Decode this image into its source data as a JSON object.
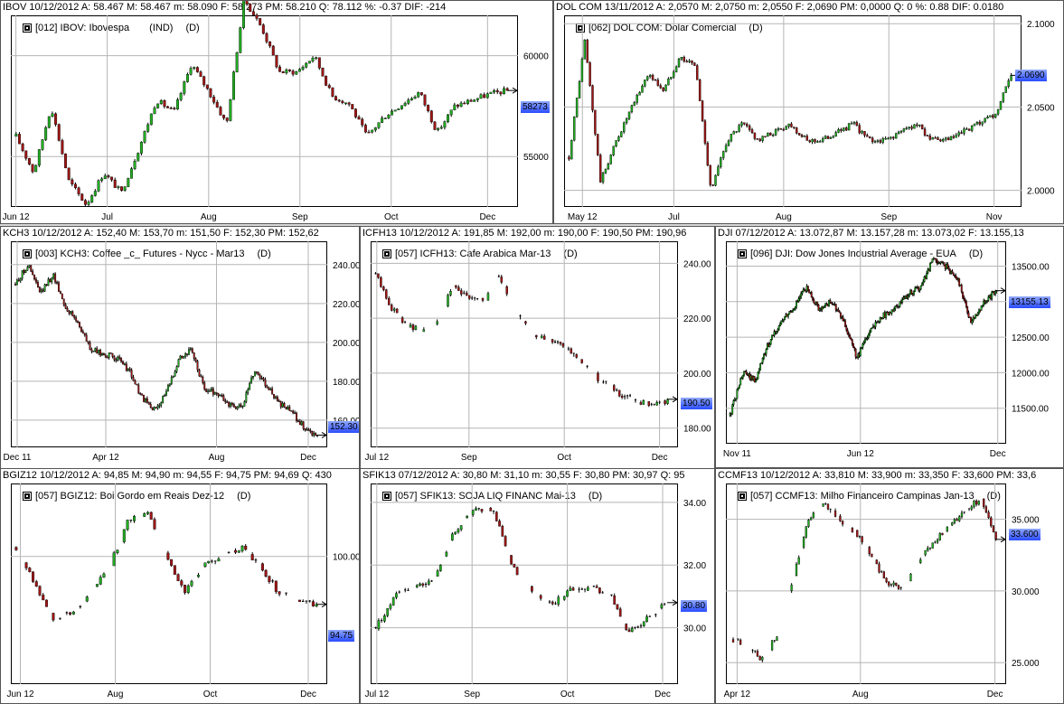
{
  "colors": {
    "up": "#22b022",
    "down": "#a01515",
    "grid": "#b5b5b5",
    "price_box": "#3355ff",
    "frame": "#000000"
  },
  "panels": [
    {
      "id": "ibov",
      "header": "IBOV   10/12/2012  A: 58.467   M: 58.467   m: 58.090   F: 58.273   PM: 58.210   Q: 78.112   %: -0.37  DIF: -214",
      "legend": "[012] IBOV: Ibovespa",
      "legend_tag": "(IND)",
      "timeframe": "(D)",
      "price_label": "58273",
      "chart_data": {
        "type": "candlestick",
        "x_ticks": [
          "Jun 12",
          "Jul",
          "Aug",
          "Sep",
          "Oct",
          "Dec"
        ],
        "y_ticks": [
          "60000",
          "55000"
        ],
        "ylim": [
          52500,
          62000
        ],
        "path": [
          56000,
          54200,
          57500,
          53800,
          52600,
          54200,
          53200,
          55400,
          57800,
          57200,
          59600,
          58200,
          56600,
          62800,
          61400,
          59200,
          59200,
          60000,
          58000,
          57600,
          56000,
          57000,
          57600,
          58200,
          56200,
          57500,
          57800,
          58100,
          58273
        ],
        "last_close": 58273
      }
    },
    {
      "id": "dolcom",
      "header": "DOL COM   13/11/2012  A: 2,0570   M: 2,0750   m: 2,0550   F: 2,0690   PM: 0,0000   Q: 0   %: 0.88  DIF: 0.0180",
      "legend": "[062] DOL COM: Dolar Comercial",
      "legend_tag": "",
      "timeframe": "(D)",
      "price_label": "2.0690",
      "chart_data": {
        "type": "candlestick",
        "x_ticks": [
          "May 12",
          "Jul",
          "Aug",
          "Sep",
          "Nov"
        ],
        "y_ticks": [
          "2.1000",
          "2.0500",
          "2.0000"
        ],
        "ylim": [
          1.99,
          2.105
        ],
        "path": [
          2.02,
          2.09,
          2.005,
          2.03,
          2.05,
          2.07,
          2.06,
          2.08,
          2.075,
          2.0,
          2.03,
          2.04,
          2.03,
          2.035,
          2.04,
          2.03,
          2.03,
          2.035,
          2.04,
          2.03,
          2.03,
          2.035,
          2.04,
          2.03,
          2.03,
          2.035,
          2.04,
          2.045,
          2.069
        ],
        "last_close": 2.069
      }
    },
    {
      "id": "kch3",
      "header": "KCH3   10/12/2012  A: 152,40   M: 153,70   m: 151,50   F: 152,30   PM: 152,62",
      "legend": "[003] KCH3: Coffee _c_ Futures - Nycc - Mar13",
      "legend_tag": "",
      "timeframe": "(D)",
      "price_label": "152.30",
      "chart_data": {
        "type": "candlestick",
        "x_ticks": [
          "Dec 11",
          "Apr 12",
          "Aug",
          "Dec"
        ],
        "y_ticks": [
          "240.00",
          "220.00",
          "200.00",
          "180.00",
          "160.00"
        ],
        "ylim": [
          146,
          252
        ],
        "path": [
          230,
          240,
          225,
          235,
          218,
          210,
          196,
          194,
          192,
          186,
          172,
          165,
          174,
          192,
          196,
          176,
          174,
          168,
          166,
          186,
          178,
          168,
          164,
          156,
          152
        ],
        "last_close": 152.3
      }
    },
    {
      "id": "icfh13",
      "header": "ICFH13   10/12/2012  A: 191,85   M: 192,00   m: 190,00   F: 190,50   PM: 190,96",
      "legend": "[057] ICFH13: Cafe Arabica Mar-13",
      "legend_tag": "",
      "timeframe": "(D)",
      "price_label": "190.50",
      "chart_data": {
        "type": "ohlc-sparse",
        "x_ticks": [
          "Jul 12",
          "Sep",
          "Oct",
          "Dec"
        ],
        "y_ticks": [
          "240.00",
          "220.00",
          "200.00",
          "180.00"
        ],
        "ylim": [
          173,
          248
        ],
        "path": [
          236,
          224,
          218,
          215,
          218,
          232,
          228,
          226,
          236,
          222,
          216,
          212,
          210,
          206,
          200,
          196,
          192,
          190,
          188,
          190
        ],
        "last_close": 190.5
      }
    },
    {
      "id": "dji",
      "header": "DJI   07/12/2012  A: 13.072,87   M: 13.157,28   m: 13.073,02   F: 13.155,13",
      "legend": "[096] DJI: Dow Jones Industrial Average - EUA",
      "legend_tag": "",
      "timeframe": "(D)",
      "price_label": "13155.13",
      "chart_data": {
        "type": "candlestick",
        "x_ticks": [
          "Nov 11",
          "Jun 12",
          "Dec"
        ],
        "y_ticks": [
          "13500.00",
          "13000.00",
          "12500.00",
          "12000.00",
          "11500.00"
        ],
        "ylim": [
          11000,
          13850
        ],
        "path": [
          11400,
          12000,
          11900,
          12400,
          12700,
          12900,
          13200,
          12900,
          13000,
          12700,
          12200,
          12600,
          12800,
          12900,
          13100,
          13200,
          13600,
          13500,
          13300,
          12700,
          13000,
          13155
        ],
        "last_close": 13155.13
      }
    },
    {
      "id": "bgiz12",
      "header": "BGIZ12   10/12/2012  A: 94,85   M: 94,90   m: 94,55   F: 94,75   PM: 94,69   Q: 430",
      "legend": "[057] BGIZ12: Boi Gordo em Reais Dez-12",
      "legend_tag": "",
      "timeframe": "(D)",
      "price_label": "94.75",
      "chart_data": {
        "type": "ohlc-sparse",
        "x_ticks": [
          "Jun 12",
          "Aug",
          "Oct",
          "Dec"
        ],
        "y_ticks": [
          "100.00"
        ],
        "ylim": [
          86,
          108
        ],
        "path": [
          101,
          97,
          93,
          94,
          96,
          99,
          104,
          105,
          100,
          96,
          99,
          100,
          101,
          99,
          96,
          95,
          94.75
        ],
        "last_close": 94.75
      }
    },
    {
      "id": "sfik13",
      "header": "SFIK13   07/12/2012  A: 30,80   M: 31,10   m: 30,55   F: 30,80   PM: 30,97   Q: 95",
      "legend": "[057] SFIK13: SOJA LIQ FINANC Mai-13",
      "legend_tag": "",
      "timeframe": "(D)",
      "price_label": "30.80",
      "chart_data": {
        "type": "ohlc-sparse",
        "x_ticks": [
          "Jul 12",
          "Sep",
          "Oct",
          "Dec"
        ],
        "y_ticks": [
          "34.00",
          "32.00",
          "30.00"
        ],
        "ylim": [
          28.2,
          34.6
        ],
        "path": [
          30.0,
          31.0,
          31.3,
          31.6,
          33.0,
          33.8,
          33.8,
          32.0,
          31.2,
          30.7,
          31.2,
          31.3,
          31.1,
          29.8,
          30.3,
          30.8
        ],
        "last_close": 30.8
      }
    },
    {
      "id": "ccmf13",
      "header": "CCMF13   10/12/2012  A: 33,810   M: 33,900   m: 33,350   F: 33,600   PM: 33,6",
      "legend": "[057] CCMF13: Milho Financeiro Campinas Jan-13",
      "legend_tag": "",
      "timeframe": "(D)",
      "price_label": "33.600",
      "chart_data": {
        "type": "ohlc-sparse",
        "x_ticks": [
          "Apr 12",
          "Aug",
          "Dec"
        ],
        "y_ticks": [
          "35.000",
          "30.000",
          "25.000"
        ],
        "ylim": [
          23.5,
          37.5
        ],
        "path": [
          26.6,
          26.2,
          25.2,
          27.0,
          31.0,
          35.0,
          36.0,
          35.0,
          34.0,
          32.5,
          30.5,
          30.2,
          32.0,
          33.5,
          34.5,
          35.5,
          36.5,
          33.6
        ],
        "last_close": 33.6
      }
    }
  ]
}
